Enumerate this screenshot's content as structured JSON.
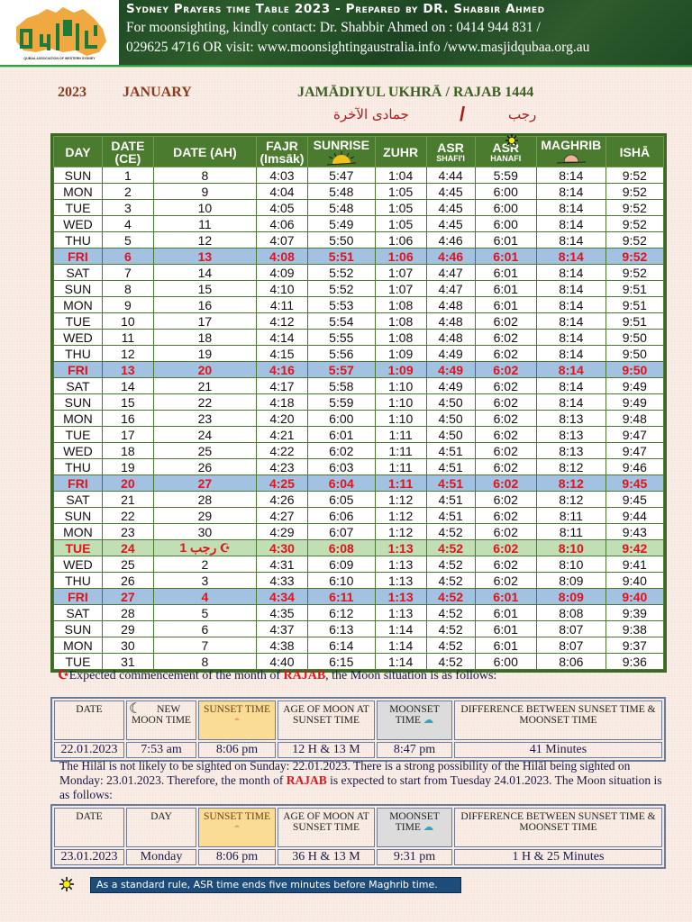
{
  "header": {
    "logo_caption": "QUBAA ASSOCIATION OF WESTERN SYDNEY",
    "title": "Sydney Prayers time Table 2023 - Prepared by DR. Shabbir Ahmed",
    "contact_line": "For moonsighting,  kindly contact:    Dr. Shabbir Ahmed on : 0414 944 831 /",
    "visit_line": "029625 4716  OR   visit: www.moonsightingaustralia.info /www.masjidqubaa.org.au"
  },
  "title_row": {
    "year": "2023",
    "month": "JANUARY",
    "hijri_months": "JAMĀDIYUL UKHRĀ / RAJAB 1444",
    "arabic_month1": "جمادى الآخرة",
    "separator": "/",
    "arabic_month2": "رجب"
  },
  "table": {
    "headers": {
      "day": "DAY",
      "date_ce": "DATE",
      "date_ce_sub": "(CE)",
      "date_ah": "DATE (AH)",
      "fajr": "FAJR",
      "fajr_sub": "(Imsāk)",
      "sunrise": "SUNRISE",
      "zuhr": "ZUHR",
      "asr_shafi": "ASR",
      "asr_shafi_sub": "SHAFI'I",
      "asr_hanafi": "ASR",
      "asr_hanafi_sub": "HANAFI",
      "maghrib": "MAGHRIB",
      "isha": "ISHĀ"
    },
    "rows": [
      {
        "day": "SUN",
        "ce": "1",
        "ah": "8",
        "fajr": "4:03",
        "sunrise": "5:47",
        "zuhr": "1:04",
        "asr_s": "4:44",
        "asr_h": "5:59",
        "maghrib": "8:14",
        "isha": "9:52",
        "type": "normal"
      },
      {
        "day": "MON",
        "ce": "2",
        "ah": "9",
        "fajr": "4:04",
        "sunrise": "5:48",
        "zuhr": "1:05",
        "asr_s": "4:45",
        "asr_h": "6:00",
        "maghrib": "8:14",
        "isha": "9:52",
        "type": "normal"
      },
      {
        "day": "TUE",
        "ce": "3",
        "ah": "10",
        "fajr": "4:05",
        "sunrise": "5:48",
        "zuhr": "1:05",
        "asr_s": "4:45",
        "asr_h": "6:00",
        "maghrib": "8:14",
        "isha": "9:52",
        "type": "normal"
      },
      {
        "day": "WED",
        "ce": "4",
        "ah": "11",
        "fajr": "4:06",
        "sunrise": "5:49",
        "zuhr": "1:05",
        "asr_s": "4:45",
        "asr_h": "6:00",
        "maghrib": "8:14",
        "isha": "9:52",
        "type": "normal"
      },
      {
        "day": "THU",
        "ce": "5",
        "ah": "12",
        "fajr": "4:07",
        "sunrise": "5:50",
        "zuhr": "1:06",
        "asr_s": "4:46",
        "asr_h": "6:01",
        "maghrib": "8:14",
        "isha": "9:52",
        "type": "normal"
      },
      {
        "day": "FRI",
        "ce": "6",
        "ah": "13",
        "fajr": "4:08",
        "sunrise": "5:51",
        "zuhr": "1:06",
        "asr_s": "4:46",
        "asr_h": "6:01",
        "maghrib": "8:14",
        "isha": "9:52",
        "type": "fri"
      },
      {
        "day": "SAT",
        "ce": "7",
        "ah": "14",
        "fajr": "4:09",
        "sunrise": "5:52",
        "zuhr": "1:07",
        "asr_s": "4:47",
        "asr_h": "6:01",
        "maghrib": "8:14",
        "isha": "9:52",
        "type": "normal"
      },
      {
        "day": "SUN",
        "ce": "8",
        "ah": "15",
        "fajr": "4:10",
        "sunrise": "5:52",
        "zuhr": "1:07",
        "asr_s": "4:47",
        "asr_h": "6:01",
        "maghrib": "8:14",
        "isha": "9:51",
        "type": "normal"
      },
      {
        "day": "MON",
        "ce": "9",
        "ah": "16",
        "fajr": "4:11",
        "sunrise": "5:53",
        "zuhr": "1:08",
        "asr_s": "4:48",
        "asr_h": "6:01",
        "maghrib": "8:14",
        "isha": "9:51",
        "type": "normal"
      },
      {
        "day": "TUE",
        "ce": "10",
        "ah": "17",
        "fajr": "4:12",
        "sunrise": "5:54",
        "zuhr": "1:08",
        "asr_s": "4:48",
        "asr_h": "6:02",
        "maghrib": "8:14",
        "isha": "9:51",
        "type": "normal"
      },
      {
        "day": "WED",
        "ce": "11",
        "ah": "18",
        "fajr": "4:14",
        "sunrise": "5:55",
        "zuhr": "1:08",
        "asr_s": "4:48",
        "asr_h": "6:02",
        "maghrib": "8:14",
        "isha": "9:50",
        "type": "normal"
      },
      {
        "day": "THU",
        "ce": "12",
        "ah": "19",
        "fajr": "4:15",
        "sunrise": "5:56",
        "zuhr": "1:09",
        "asr_s": "4:49",
        "asr_h": "6:02",
        "maghrib": "8:14",
        "isha": "9:50",
        "type": "normal"
      },
      {
        "day": "FRI",
        "ce": "13",
        "ah": "20",
        "fajr": "4:16",
        "sunrise": "5:57",
        "zuhr": "1:09",
        "asr_s": "4:49",
        "asr_h": "6:02",
        "maghrib": "8:14",
        "isha": "9:50",
        "type": "fri"
      },
      {
        "day": "SAT",
        "ce": "14",
        "ah": "21",
        "fajr": "4:17",
        "sunrise": "5:58",
        "zuhr": "1:10",
        "asr_s": "4:49",
        "asr_h": "6:02",
        "maghrib": "8:14",
        "isha": "9:49",
        "type": "normal"
      },
      {
        "day": "SUN",
        "ce": "15",
        "ah": "22",
        "fajr": "4:18",
        "sunrise": "5:59",
        "zuhr": "1:10",
        "asr_s": "4:50",
        "asr_h": "6:02",
        "maghrib": "8:14",
        "isha": "9:49",
        "type": "normal"
      },
      {
        "day": "MON",
        "ce": "16",
        "ah": "23",
        "fajr": "4:20",
        "sunrise": "6:00",
        "zuhr": "1:10",
        "asr_s": "4:50",
        "asr_h": "6:02",
        "maghrib": "8:13",
        "isha": "9:48",
        "type": "normal"
      },
      {
        "day": "TUE",
        "ce": "17",
        "ah": "24",
        "fajr": "4:21",
        "sunrise": "6:01",
        "zuhr": "1:11",
        "asr_s": "4:50",
        "asr_h": "6:02",
        "maghrib": "8:13",
        "isha": "9:47",
        "type": "normal"
      },
      {
        "day": "WED",
        "ce": "18",
        "ah": "25",
        "fajr": "4:22",
        "sunrise": "6:02",
        "zuhr": "1:11",
        "asr_s": "4:51",
        "asr_h": "6:02",
        "maghrib": "8:13",
        "isha": "9:47",
        "type": "normal"
      },
      {
        "day": "THU",
        "ce": "19",
        "ah": "26",
        "fajr": "4:23",
        "sunrise": "6:03",
        "zuhr": "1:11",
        "asr_s": "4:51",
        "asr_h": "6:02",
        "maghrib": "8:12",
        "isha": "9:46",
        "type": "normal"
      },
      {
        "day": "FRI",
        "ce": "20",
        "ah": "27",
        "fajr": "4:25",
        "sunrise": "6:04",
        "zuhr": "1:11",
        "asr_s": "4:51",
        "asr_h": "6:02",
        "maghrib": "8:12",
        "isha": "9:45",
        "type": "fri"
      },
      {
        "day": "SAT",
        "ce": "21",
        "ah": "28",
        "fajr": "4:26",
        "sunrise": "6:05",
        "zuhr": "1:12",
        "asr_s": "4:51",
        "asr_h": "6:02",
        "maghrib": "8:12",
        "isha": "9:45",
        "type": "normal"
      },
      {
        "day": "SUN",
        "ce": "22",
        "ah": "29",
        "fajr": "4:27",
        "sunrise": "6:06",
        "zuhr": "1:12",
        "asr_s": "4:51",
        "asr_h": "6:02",
        "maghrib": "8:11",
        "isha": "9:44",
        "type": "normal"
      },
      {
        "day": "MON",
        "ce": "23",
        "ah": "30",
        "fajr": "4:29",
        "sunrise": "6:07",
        "zuhr": "1:12",
        "asr_s": "4:52",
        "asr_h": "6:02",
        "maghrib": "8:11",
        "isha": "9:43",
        "type": "normal"
      },
      {
        "day": "TUE",
        "ce": "24",
        "ah": "1 رجب",
        "fajr": "4:30",
        "sunrise": "6:08",
        "zuhr": "1:13",
        "asr_s": "4:52",
        "asr_h": "6:02",
        "maghrib": "8:10",
        "isha": "9:42",
        "type": "start"
      },
      {
        "day": "WED",
        "ce": "25",
        "ah": "2",
        "fajr": "4:31",
        "sunrise": "6:09",
        "zuhr": "1:13",
        "asr_s": "4:52",
        "asr_h": "6:02",
        "maghrib": "8:10",
        "isha": "9:41",
        "type": "normal"
      },
      {
        "day": "THU",
        "ce": "26",
        "ah": "3",
        "fajr": "4:33",
        "sunrise": "6:10",
        "zuhr": "1:13",
        "asr_s": "4:52",
        "asr_h": "6:02",
        "maghrib": "8:09",
        "isha": "9:40",
        "type": "normal"
      },
      {
        "day": "FRI",
        "ce": "27",
        "ah": "4",
        "fajr": "4:34",
        "sunrise": "6:11",
        "zuhr": "1:13",
        "asr_s": "4:52",
        "asr_h": "6:01",
        "maghrib": "8:09",
        "isha": "9:40",
        "type": "fri"
      },
      {
        "day": "SAT",
        "ce": "28",
        "ah": "5",
        "fajr": "4:35",
        "sunrise": "6:12",
        "zuhr": "1:13",
        "asr_s": "4:52",
        "asr_h": "6:01",
        "maghrib": "8:08",
        "isha": "9:39",
        "type": "normal"
      },
      {
        "day": "SUN",
        "ce": "29",
        "ah": "6",
        "fajr": "4:37",
        "sunrise": "6:13",
        "zuhr": "1:14",
        "asr_s": "4:52",
        "asr_h": "6:01",
        "maghrib": "8:07",
        "isha": "9:38",
        "type": "normal"
      },
      {
        "day": "MON",
        "ce": "30",
        "ah": "7",
        "fajr": "4:38",
        "sunrise": "6:14",
        "zuhr": "1:14",
        "asr_s": "4:52",
        "asr_h": "6:01",
        "maghrib": "8:07",
        "isha": "9:37",
        "type": "normal"
      },
      {
        "day": "TUE",
        "ce": "31",
        "ah": "8",
        "fajr": "4:40",
        "sunrise": "6:15",
        "zuhr": "1:14",
        "asr_s": "4:52",
        "asr_h": "6:00",
        "maghrib": "8:06",
        "isha": "9:36",
        "type": "normal"
      }
    ]
  },
  "note1": {
    "prefix": "Expected commencement of the month of ",
    "month": "RAJAB",
    "suffix": ", the Moon situation is as follows:"
  },
  "moon_table1": {
    "headers": [
      "DATE",
      "NEW MOON TIME",
      "SUNSET TIME",
      "AGE OF MOON AT SUNSET TIME",
      "MOONSET TIME",
      "DIFFERENCE BETWEEN SUNSET TIME & MOONSET TIME"
    ],
    "values": [
      "22.01.2023",
      "7:53 am",
      "8:06 pm",
      "12 H & 13 M",
      "8:47 pm",
      "41 Minutes"
    ]
  },
  "paragraph": {
    "part1": "The Hilāl is not likely to be sighted on Sunday: 22.01.2023. There is a strong possibility of the Hilāl being sighted on Monday: 23.01.2023. Therefore, the month of ",
    "month": "RAJAB",
    "part2": " is expected to start from Tuesday 24.01.2023. The Moon situation is as follows:"
  },
  "moon_table2": {
    "headers": [
      "DATE",
      "DAY",
      "SUNSET TIME",
      "AGE OF MOON AT SUNSET TIME",
      "MOONSET TIME",
      "DIFFERENCE BETWEEN SUNSET TIME & MOONSET TIME"
    ],
    "values": [
      "23.01.2023",
      "Monday",
      "8:06 pm",
      "36 H & 13 M",
      "9:31 pm",
      "1 H & 25 Minutes"
    ]
  },
  "footnote": {
    "text": "As a standard rule, ASR time ends five minutes before Maghrib time."
  },
  "colors": {
    "header_green": "#4b7b2e",
    "friday_row": "#a3c2e2",
    "rajab_start_row": "#c2deb4",
    "highlight_text": "#e0141c",
    "footnote_bg": "#1d4c7a"
  }
}
